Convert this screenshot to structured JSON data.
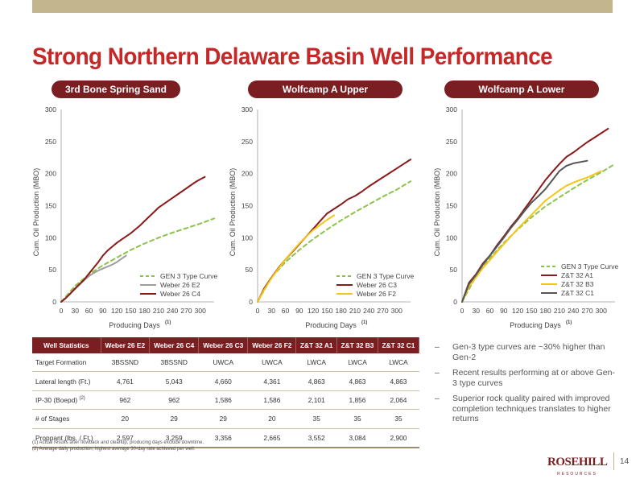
{
  "title": "Strong Northern Delaware Basin Well Performance",
  "page_number": "14",
  "logo": {
    "main": "ROSEHILL",
    "sub": "RESOURCES"
  },
  "colors": {
    "accent_red": "#c62828",
    "pill_bg": "#7b1e22",
    "gold": "#c4b68c",
    "dashed_green": "#8bc34a",
    "gray_line": "#9e9e9e",
    "maroon_line": "#8b1a1a",
    "yellow_line": "#f5c518",
    "dark_gray_line": "#555555"
  },
  "chart_data": [
    {
      "type": "line",
      "panel_label": "3rd Bone Spring Sand",
      "xlabel": "Producing Days",
      "xlabel_sup": "(1)",
      "ylabel": "Cum. Oil Production (MBO)",
      "xlim": [
        0,
        330
      ],
      "ylim": [
        0,
        300
      ],
      "xticks": [
        0,
        30,
        60,
        90,
        120,
        150,
        180,
        210,
        240,
        270,
        300
      ],
      "yticks": [
        0,
        50,
        100,
        150,
        200,
        250,
        300
      ],
      "legend": "bottom-right",
      "series": [
        {
          "name": "GEN 3 Type Curve",
          "color": "#8bc34a",
          "dashed": true,
          "x": [
            0,
            30,
            60,
            90,
            120,
            150,
            180,
            210,
            240,
            270,
            300,
            330
          ],
          "y": [
            0,
            25,
            43,
            57,
            69,
            81,
            91,
            100,
            108,
            115,
            122,
            130
          ]
        },
        {
          "name": "Weber 26 E2",
          "color": "#9e9e9e",
          "dashed": false,
          "x": [
            0,
            10,
            20,
            30,
            40,
            50,
            60,
            70,
            80,
            90,
            100,
            110,
            120,
            130,
            140
          ],
          "y": [
            0,
            6,
            13,
            20,
            27,
            34,
            40,
            45,
            49,
            52,
            55,
            58,
            62,
            67,
            72
          ]
        },
        {
          "name": "Weber 26 C4",
          "color": "#8b1a1a",
          "dashed": false,
          "x": [
            0,
            10,
            20,
            30,
            40,
            50,
            60,
            70,
            80,
            90,
            100,
            110,
            120,
            130,
            140,
            150,
            160,
            170,
            180,
            190,
            200,
            210,
            220,
            230,
            240,
            250,
            260,
            270,
            280,
            290,
            300,
            310
          ],
          "y": [
            0,
            6,
            13,
            21,
            28,
            35,
            44,
            53,
            62,
            72,
            80,
            86,
            92,
            97,
            102,
            107,
            113,
            119,
            126,
            133,
            140,
            147,
            152,
            157,
            162,
            167,
            172,
            177,
            182,
            187,
            191,
            195
          ]
        }
      ]
    },
    {
      "type": "line",
      "panel_label": "Wolfcamp A Upper",
      "xlabel": "Producing Days",
      "xlabel_sup": "(1)",
      "ylabel": "Cum. Oil Production (MBO)",
      "xlim": [
        0,
        330
      ],
      "ylim": [
        0,
        300
      ],
      "xticks": [
        0,
        30,
        60,
        90,
        120,
        150,
        180,
        210,
        240,
        270,
        300
      ],
      "yticks": [
        0,
        50,
        100,
        150,
        200,
        250,
        300
      ],
      "legend": "bottom-right",
      "series": [
        {
          "name": "GEN 3 Type Curve",
          "color": "#8bc34a",
          "dashed": true,
          "x": [
            0,
            30,
            60,
            90,
            120,
            150,
            180,
            210,
            240,
            270,
            300,
            330
          ],
          "y": [
            0,
            38,
            62,
            81,
            98,
            113,
            127,
            140,
            152,
            164,
            175,
            188
          ]
        },
        {
          "name": "Weber 26 C3",
          "color": "#8b1a1a",
          "dashed": false,
          "x": [
            0,
            15,
            30,
            45,
            60,
            75,
            90,
            105,
            120,
            135,
            150,
            165,
            180,
            195,
            210,
            225,
            240,
            255,
            270,
            285,
            300,
            315,
            330
          ],
          "y": [
            0,
            22,
            38,
            53,
            66,
            78,
            90,
            102,
            114,
            126,
            138,
            145,
            152,
            160,
            165,
            172,
            180,
            187,
            194,
            201,
            208,
            215,
            222
          ]
        },
        {
          "name": "Weber 26 F2",
          "color": "#f5c518",
          "dashed": false,
          "x": [
            0,
            15,
            30,
            45,
            60,
            75,
            90,
            105,
            120,
            135,
            150,
            165
          ],
          "y": [
            0,
            20,
            37,
            52,
            66,
            79,
            91,
            102,
            112,
            120,
            128,
            135
          ]
        }
      ]
    },
    {
      "type": "line",
      "panel_label": "Wolfcamp A Lower",
      "xlabel": "Producing Days",
      "xlabel_sup": "(1)",
      "ylabel": "Cum. Oil Production (MBO)",
      "xlim": [
        0,
        330
      ],
      "ylim": [
        0,
        300
      ],
      "xticks": [
        0,
        30,
        60,
        90,
        120,
        150,
        180,
        210,
        240,
        270,
        300
      ],
      "yticks": [
        0,
        50,
        100,
        150,
        200,
        250,
        300
      ],
      "legend": "bottom-right",
      "series": [
        {
          "name": "GEN 3 Type Curve",
          "color": "#8bc34a",
          "dashed": true,
          "x": [
            0,
            30,
            60,
            90,
            120,
            150,
            180,
            210,
            240,
            270,
            300,
            330
          ],
          "y": [
            0,
            40,
            68,
            92,
            113,
            132,
            149,
            163,
            177,
            190,
            202,
            215
          ]
        },
        {
          "name": "Z&T 32 A1",
          "color": "#8b1a1a",
          "dashed": false,
          "x": [
            0,
            15,
            30,
            45,
            60,
            75,
            90,
            105,
            120,
            135,
            150,
            165,
            180,
            195,
            210,
            225,
            240,
            255,
            270,
            285,
            300,
            315
          ],
          "y": [
            0,
            30,
            43,
            60,
            72,
            88,
            102,
            117,
            130,
            145,
            160,
            175,
            190,
            203,
            215,
            226,
            233,
            241,
            249,
            256,
            263,
            270
          ]
        },
        {
          "name": "Z&T 32 B3",
          "color": "#f5c518",
          "dashed": false,
          "x": [
            0,
            15,
            30,
            45,
            60,
            75,
            90,
            105,
            120,
            135,
            150,
            165,
            180,
            195,
            210,
            225,
            240,
            255,
            270,
            285,
            300
          ],
          "y": [
            0,
            24,
            38,
            53,
            65,
            78,
            90,
            102,
            114,
            125,
            136,
            147,
            158,
            166,
            174,
            181,
            186,
            190,
            194,
            199,
            204
          ]
        },
        {
          "name": "Z&T 32 C1",
          "color": "#555555",
          "dashed": false,
          "x": [
            0,
            15,
            30,
            45,
            60,
            75,
            90,
            105,
            120,
            135,
            150,
            165,
            180,
            195,
            210,
            225,
            240,
            255,
            270
          ],
          "y": [
            0,
            28,
            42,
            58,
            72,
            86,
            100,
            115,
            128,
            142,
            155,
            165,
            176,
            190,
            204,
            212,
            216,
            218,
            220
          ]
        }
      ]
    }
  ],
  "table": {
    "headers": [
      "Well Statistics",
      "Weber 26 E2",
      "Weber 26 C4",
      "Weber 26 C3",
      "Weber 26 F2",
      "Z&T 32 A1",
      "Z&T 32 B3",
      "Z&T 32 C1"
    ],
    "rows": [
      {
        "label": "Target Formation",
        "sup": "",
        "cells": [
          "3BSSND",
          "3BSSND",
          "UWCA",
          "UWCA",
          "LWCA",
          "LWCA",
          "LWCA"
        ]
      },
      {
        "label": "Lateral length (Ft.)",
        "sup": "",
        "cells": [
          "4,761",
          "5,043",
          "4,660",
          "4,361",
          "4,863",
          "4,863",
          "4,863"
        ]
      },
      {
        "label": "IP-30 (Boepd)",
        "sup": "(2)",
        "cells": [
          "962",
          "962",
          "1,586",
          "1,586",
          "2,101",
          "1,856",
          "2,064"
        ]
      },
      {
        "label": "# of Stages",
        "sup": "",
        "cells": [
          "20",
          "29",
          "29",
          "20",
          "35",
          "35",
          "35"
        ]
      },
      {
        "label": "Proppant (lbs. / Ft.)",
        "sup": "",
        "cells": [
          "2,597",
          "3,259",
          "3,356",
          "2,665",
          "3,552",
          "3,084",
          "2,900"
        ]
      }
    ]
  },
  "footnotes": [
    "(1) Actual results after flowback and cleanup, producing days exclude downtime.",
    "(2) Average daily production, highest average 30-day rate achieved per well."
  ],
  "bullets": [
    "Gen-3 type curves are ~30% higher than Gen-2",
    "Recent results performing at or above Gen-3 type curves",
    "Superior rock quality paired with improved completion techniques translates to higher returns"
  ],
  "bullet_marker": "–"
}
